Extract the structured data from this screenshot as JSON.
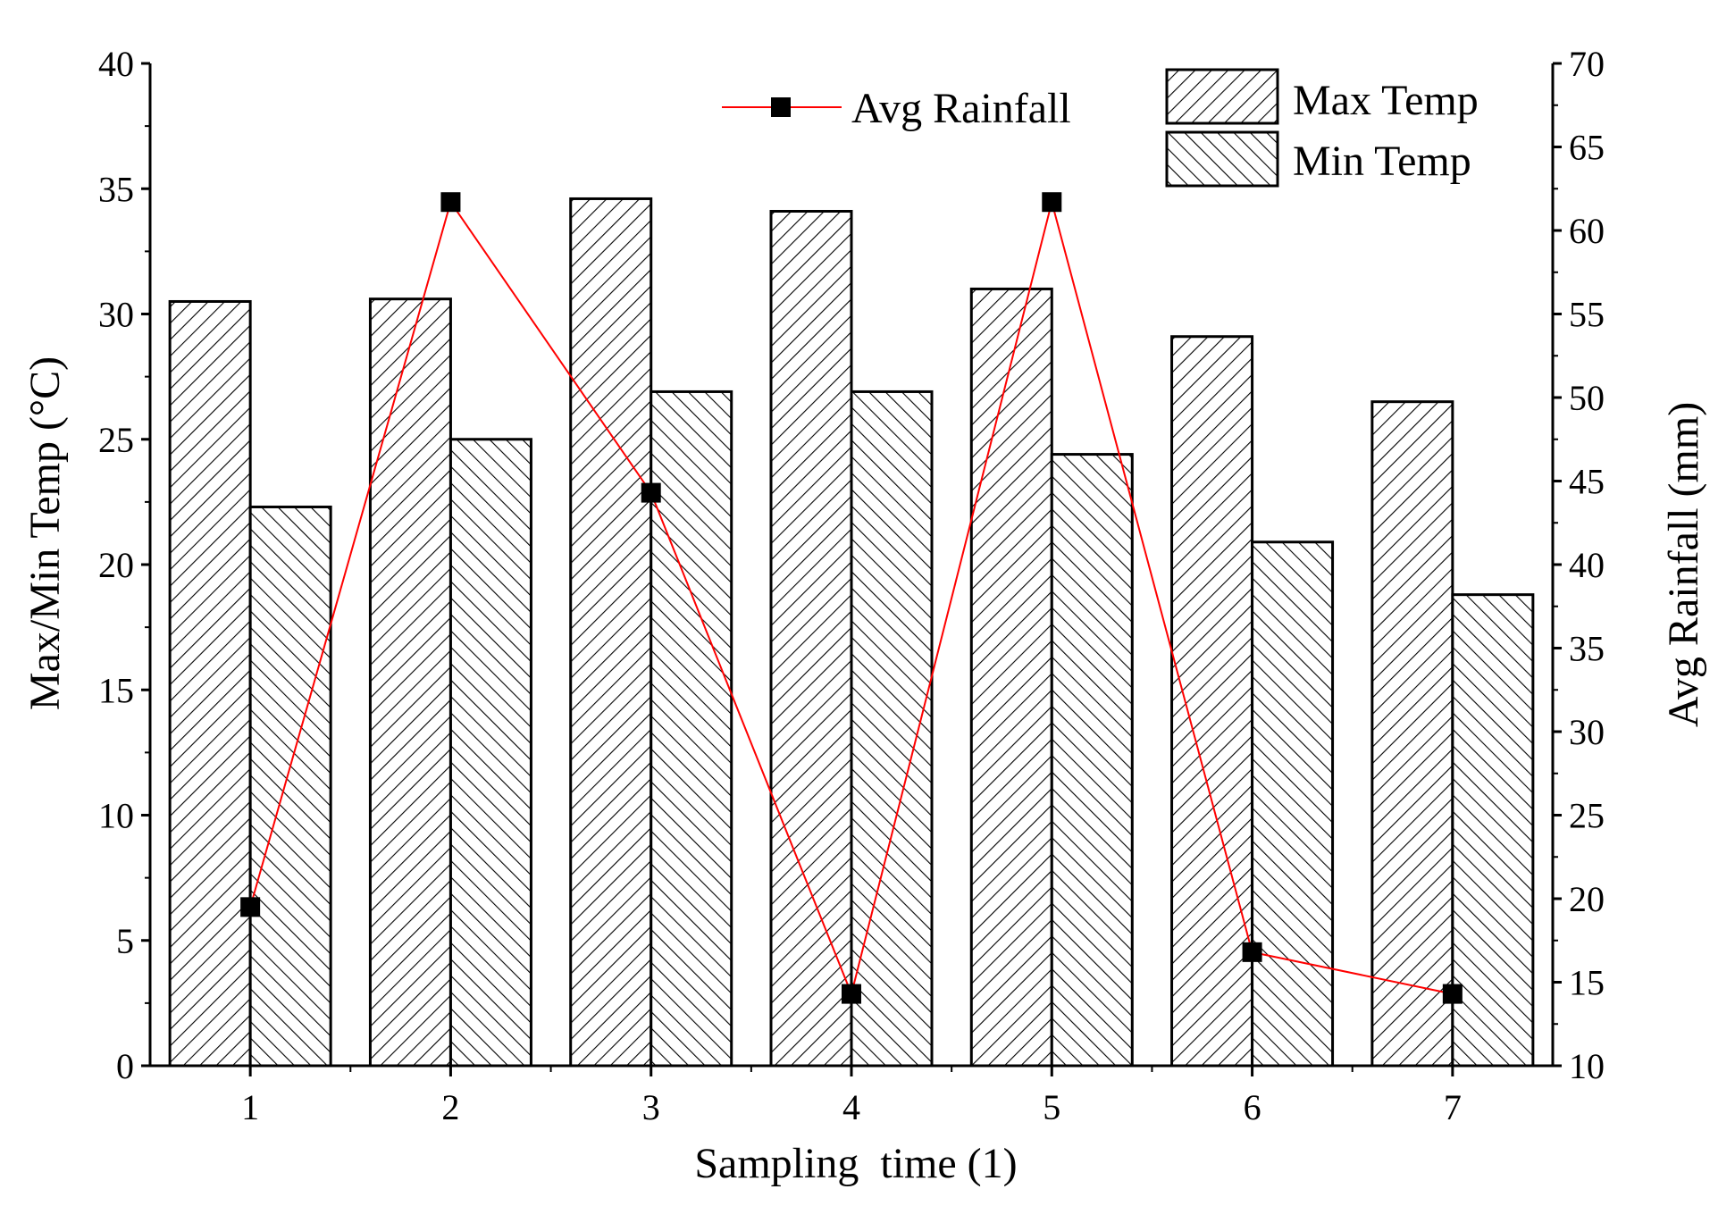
{
  "chart_data": {
    "type": "bar",
    "categories": [
      "1",
      "2",
      "3",
      "4",
      "5",
      "6",
      "7"
    ],
    "xlabel": "Sampling  time (1)",
    "ylabel": "Max/Min Temp (°C)",
    "y2label": "Avg Rainfall (mm)",
    "ylim": [
      0,
      40
    ],
    "y2lim": [
      10,
      70
    ],
    "yticks": [
      "0",
      "5",
      "10",
      "15",
      "20",
      "25",
      "30",
      "35",
      "40"
    ],
    "y2ticks": [
      "10",
      "15",
      "20",
      "25",
      "30",
      "35",
      "40",
      "45",
      "50",
      "55",
      "60",
      "65",
      "70"
    ],
    "series": [
      {
        "name": "Max Temp",
        "type": "bar",
        "axis": "left",
        "pattern": "forward-hatch",
        "values": [
          30.5,
          30.6,
          34.6,
          34.1,
          31.0,
          29.1,
          26.5
        ]
      },
      {
        "name": "Min Temp",
        "type": "bar",
        "axis": "left",
        "pattern": "back-hatch",
        "values": [
          22.3,
          25.0,
          26.9,
          26.9,
          24.4,
          20.9,
          18.8
        ]
      },
      {
        "name": "Avg Rainfall",
        "type": "line",
        "axis": "right",
        "marker": "square",
        "values": [
          19.5,
          61.7,
          44.3,
          14.3,
          61.7,
          16.8,
          14.3
        ]
      }
    ],
    "colors": {
      "line": "#ff0000",
      "marker": "#000000",
      "bar_stroke": "#000000",
      "bar_fill": "#ffffff"
    },
    "legend": {
      "line_item": "Avg Rainfall",
      "bar_items": [
        "Max Temp",
        "Min Temp"
      ],
      "placement": "top-right"
    }
  }
}
